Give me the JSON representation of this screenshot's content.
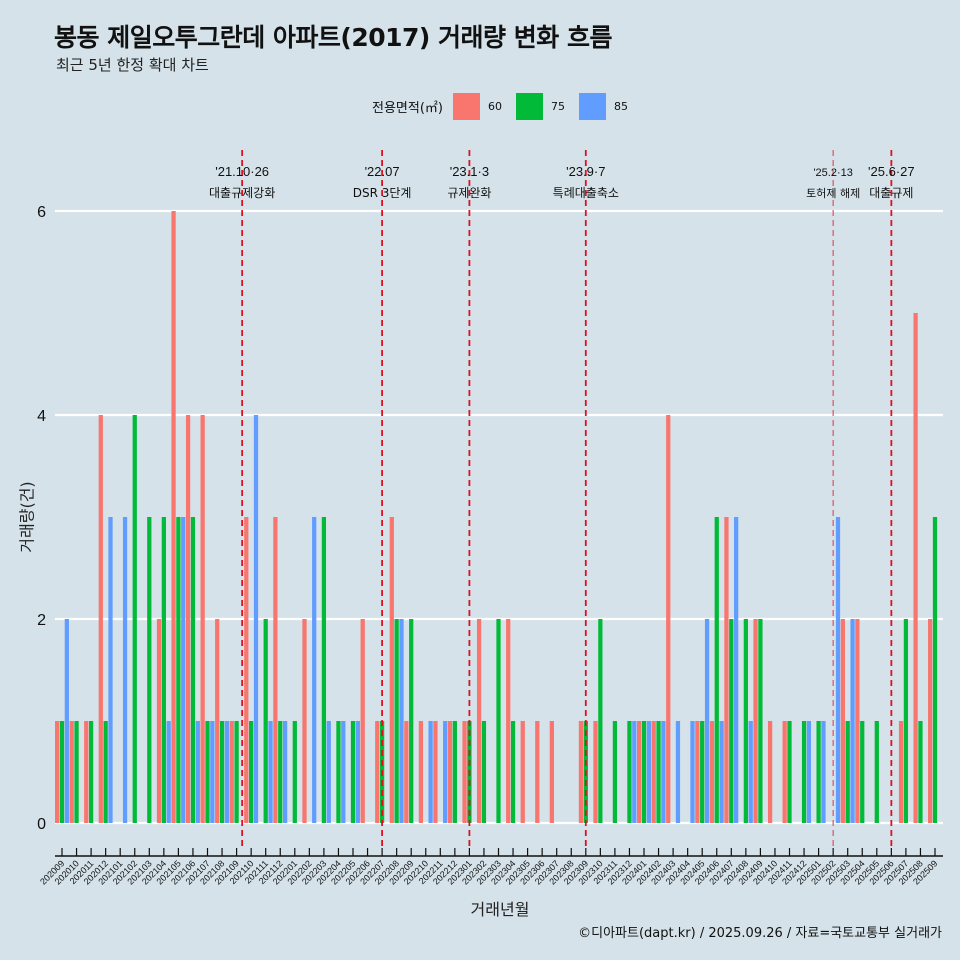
{
  "title": "봉동 제일오투그란데 아파트(2017) 거래량 변화 흐름",
  "subtitle": "최근 5년 한정 확대 차트",
  "legend": {
    "title": "전용면적(㎡)",
    "items": [
      {
        "label": "60",
        "color": "#f8766d"
      },
      {
        "label": "75",
        "color": "#00ba38"
      },
      {
        "label": "85",
        "color": "#619cff"
      }
    ]
  },
  "footer": "©디아파트(dapt.kr) / 2025.09.26 / 자료=국토교통부 실거래가",
  "chart_data": {
    "type": "bar",
    "title": "봉동 제일오투그란데 아파트(2017) 거래량 변화 흐름",
    "xlabel": "거래년월",
    "ylabel": "거래량(건)",
    "ylim": [
      0,
      6.6
    ],
    "yticks": [
      0,
      2,
      4,
      6
    ],
    "grid": true,
    "legend_position": "top",
    "categories": [
      "202009",
      "202010",
      "202011",
      "202012",
      "202101",
      "202102",
      "202103",
      "202104",
      "202105",
      "202106",
      "202107",
      "202108",
      "202109",
      "202110",
      "202111",
      "202112",
      "202201",
      "202202",
      "202203",
      "202204",
      "202205",
      "202206",
      "202207",
      "202208",
      "202209",
      "202210",
      "202211",
      "202212",
      "202301",
      "202302",
      "202303",
      "202304",
      "202305",
      "202306",
      "202307",
      "202308",
      "202309",
      "202310",
      "202311",
      "202312",
      "202401",
      "202402",
      "202403",
      "202404",
      "202405",
      "202406",
      "202407",
      "202408",
      "202409",
      "202410",
      "202411",
      "202412",
      "202501",
      "202502",
      "202503",
      "202504",
      "202505",
      "202506",
      "202507",
      "202508",
      "202509"
    ],
    "series": [
      {
        "name": "60",
        "values": [
          1,
          1,
          1,
          4,
          0,
          0,
          0,
          2,
          6,
          4,
          4,
          2,
          1,
          3,
          0,
          3,
          0,
          2,
          0,
          0,
          0,
          2,
          1,
          3,
          1,
          1,
          1,
          1,
          1,
          2,
          0,
          2,
          1,
          1,
          1,
          0,
          1,
          1,
          0,
          0,
          1,
          1,
          4,
          0,
          1,
          1,
          3,
          0,
          2,
          1,
          1,
          0,
          0,
          0,
          2,
          2,
          0,
          0,
          1,
          5,
          2
        ]
      },
      {
        "name": "75",
        "values": [
          1,
          1,
          1,
          1,
          0,
          4,
          3,
          3,
          3,
          3,
          1,
          1,
          1,
          1,
          2,
          1,
          1,
          0,
          3,
          1,
          1,
          0,
          1,
          2,
          2,
          0,
          0,
          1,
          1,
          1,
          2,
          1,
          0,
          0,
          0,
          0,
          1,
          2,
          1,
          1,
          1,
          1,
          0,
          0,
          1,
          3,
          2,
          2,
          2,
          0,
          1,
          1,
          1,
          0,
          1,
          1,
          1,
          0,
          2,
          1,
          3
        ]
      },
      {
        "name": "85",
        "values": [
          2,
          0,
          0,
          3,
          3,
          0,
          0,
          1,
          3,
          1,
          1,
          1,
          0,
          4,
          1,
          1,
          0,
          3,
          1,
          1,
          1,
          0,
          0,
          2,
          0,
          1,
          1,
          0,
          0,
          0,
          0,
          0,
          0,
          0,
          0,
          0,
          0,
          0,
          0,
          1,
          1,
          1,
          1,
          1,
          2,
          1,
          3,
          1,
          0,
          0,
          0,
          1,
          1,
          3,
          2,
          0,
          0,
          0,
          0,
          0,
          0
        ]
      }
    ],
    "annotations": [
      {
        "x": "202110",
        "date": "'21.10·26",
        "label": "대출규제강화"
      },
      {
        "x": "202207",
        "date": "'22.07",
        "label": "DSR 3단계"
      },
      {
        "x": "202301",
        "date": "'23.1·3",
        "label": "규제완화"
      },
      {
        "x": "202309",
        "date": "'23.9·7",
        "label": "특례대출축소"
      },
      {
        "x": "202502",
        "date": "'25.2·13",
        "label": "토허제 해제"
      },
      {
        "x": "202506",
        "date": "'25.6·27",
        "label": "대출규제"
      }
    ]
  }
}
